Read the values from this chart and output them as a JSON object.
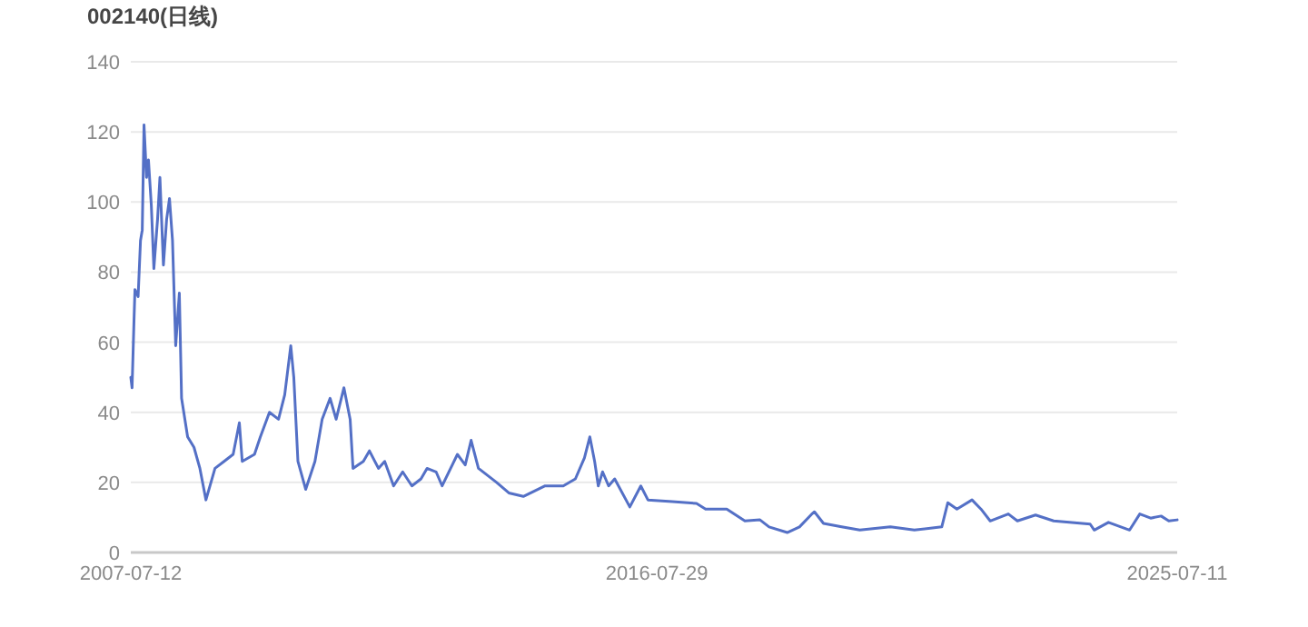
{
  "chart_data": {
    "type": "line",
    "title": "002140(日线)",
    "color": "#5470c6",
    "grid": "y",
    "xlim": [
      "2007-07-12",
      "2025-07-11"
    ],
    "xticks": [
      "2007-07-12",
      "2016-07-29",
      "2025-07-11"
    ],
    "ylim": [
      0,
      140
    ],
    "yticks": [
      0,
      20,
      40,
      60,
      80,
      100,
      120,
      140
    ],
    "x": [
      "2007-07-12",
      "2007-07-20",
      "2007-08-01",
      "2007-08-07",
      "2007-08-27",
      "2007-09-11",
      "2007-09-22",
      "2007-10-03",
      "2007-10-19",
      "2007-10-31",
      "2007-11-18",
      "2007-12-04",
      "2007-12-27",
      "2008-01-11",
      "2008-02-02",
      "2008-02-22",
      "2008-03-11",
      "2008-03-30",
      "2008-04-19",
      "2008-05-12",
      "2008-05-26",
      "2008-07-03",
      "2008-08-12",
      "2008-09-18",
      "2008-10-26",
      "2008-12-22",
      "2009-02-17",
      "2009-04-15",
      "2009-05-24",
      "2009-06-11",
      "2009-08-27",
      "2009-10-03",
      "2009-11-29",
      "2010-01-25",
      "2010-03-05",
      "2010-04-12",
      "2010-05-01",
      "2010-05-27",
      "2010-07-15",
      "2010-09-11",
      "2010-10-26",
      "2010-12-15",
      "2011-01-22",
      "2011-03-12",
      "2011-04-20",
      "2011-05-08",
      "2011-07-12",
      "2011-08-19",
      "2011-10-15",
      "2011-11-23",
      "2012-01-18",
      "2012-03-15",
      "2012-05-12",
      "2012-07-08",
      "2012-08-15",
      "2012-10-11",
      "2012-11-18",
      "2013-02-22",
      "2013-04-12",
      "2013-05-19",
      "2013-07-04",
      "2013-10-26",
      "2014-01-11",
      "2014-04-12",
      "2014-08-27",
      "2014-12-19",
      "2015-03-05",
      "2015-05-01",
      "2015-06-04",
      "2015-07-04",
      "2015-07-27",
      "2015-08-23",
      "2015-09-30",
      "2015-11-07",
      "2016-02-10",
      "2016-04-19",
      "2016-06-03",
      "2016-11-03",
      "2017-04-04",
      "2017-05-31",
      "2017-10-11",
      "2018-02-02",
      "2018-05-08",
      "2018-07-04",
      "2018-10-26",
      "2019-01-11",
      "2019-03-28",
      "2019-04-15",
      "2019-06-11",
      "2019-10-03",
      "2020-01-25",
      "2020-08-04",
      "2021-01-02",
      "2021-06-23",
      "2021-07-31",
      "2021-09-26",
      "2021-12-30",
      "2022-02-24",
      "2022-04-23",
      "2022-08-15",
      "2022-10-11",
      "2023-02-02",
      "2023-05-27",
      "2024-01-11",
      "2024-02-06",
      "2024-05-05",
      "2024-09-15",
      "2024-11-18",
      "2025-01-25",
      "2025-04-01",
      "2025-05-19",
      "2025-07-11"
    ],
    "values": [
      50,
      47,
      66,
      75,
      73,
      89,
      92,
      122,
      107,
      112,
      99,
      81,
      95,
      107,
      82,
      95,
      101,
      89,
      59,
      74,
      44,
      33,
      30,
      24,
      15,
      24,
      26,
      28,
      37,
      26,
      28,
      33,
      40,
      38,
      45,
      59,
      50,
      26,
      18,
      26,
      38,
      44,
      38,
      47,
      38,
      24,
      26,
      29,
      24,
      26,
      19,
      23,
      19,
      21,
      24,
      23,
      19,
      28,
      25,
      32,
      24,
      20,
      17,
      16,
      19,
      19,
      21,
      27,
      33,
      26,
      19,
      23,
      19,
      21,
      13,
      19,
      15,
      14.5,
      14,
      12.4,
      12.4,
      9,
      9.3,
      7.3,
      5.7,
      7.3,
      10.9,
      11.6,
      8.3,
      7.3,
      6.4,
      7.3,
      6.4,
      7.3,
      14.2,
      12.4,
      15,
      12.4,
      9,
      11,
      9,
      10.7,
      9,
      8.1,
      6.4,
      8.6,
      6.4,
      11,
      9.8,
      10.4,
      9,
      9.3
    ]
  }
}
